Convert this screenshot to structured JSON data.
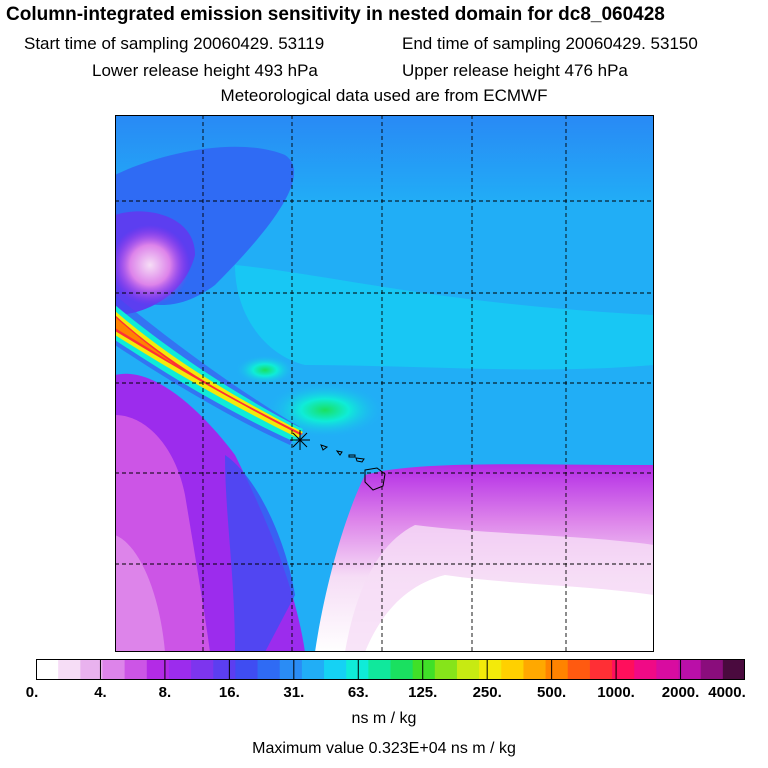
{
  "header": {
    "title": "Column-integrated emission sensitivity in nested domain for dc8_060428",
    "start_time": "Start time of sampling 20060429. 53119",
    "end_time": "End time of sampling 20060429. 53150",
    "lower_height": "Lower release height  493 hPa",
    "upper_height": "Upper release height  476 hPa",
    "met_data": "Meteorological data used are from ECMWF"
  },
  "legend": {
    "ticks": [
      "0.",
      "4.",
      "8.",
      "16.",
      "31.",
      "63.",
      "125.",
      "250.",
      "500.",
      "1000.",
      "2000.",
      "4000."
    ],
    "colors": [
      "#ffffff",
      "#f6ddf6",
      "#e9b2ee",
      "#dd84ea",
      "#cc55e6",
      "#b32be6",
      "#9c2ced",
      "#7d35ee",
      "#5c3ef0",
      "#3f4df2",
      "#2f6bf4",
      "#2a8cf5",
      "#21aef6",
      "#15d2f4",
      "#0fecd8",
      "#10e89c",
      "#1ae060",
      "#40e028",
      "#86e41a",
      "#c7ea12",
      "#f3ea0a",
      "#ffd000",
      "#ffa800",
      "#ff8300",
      "#ff5a10",
      "#ff2f35",
      "#ff0f5c",
      "#f00a86",
      "#d80ca0",
      "#ba0fa8",
      "#8a0d7c",
      "#4a0a3e"
    ],
    "units": "ns m / kg",
    "max_value": "Maximum value  0.323E+04 ns m / kg"
  },
  "map": {
    "grid": "on",
    "grid_style": "dashed"
  }
}
